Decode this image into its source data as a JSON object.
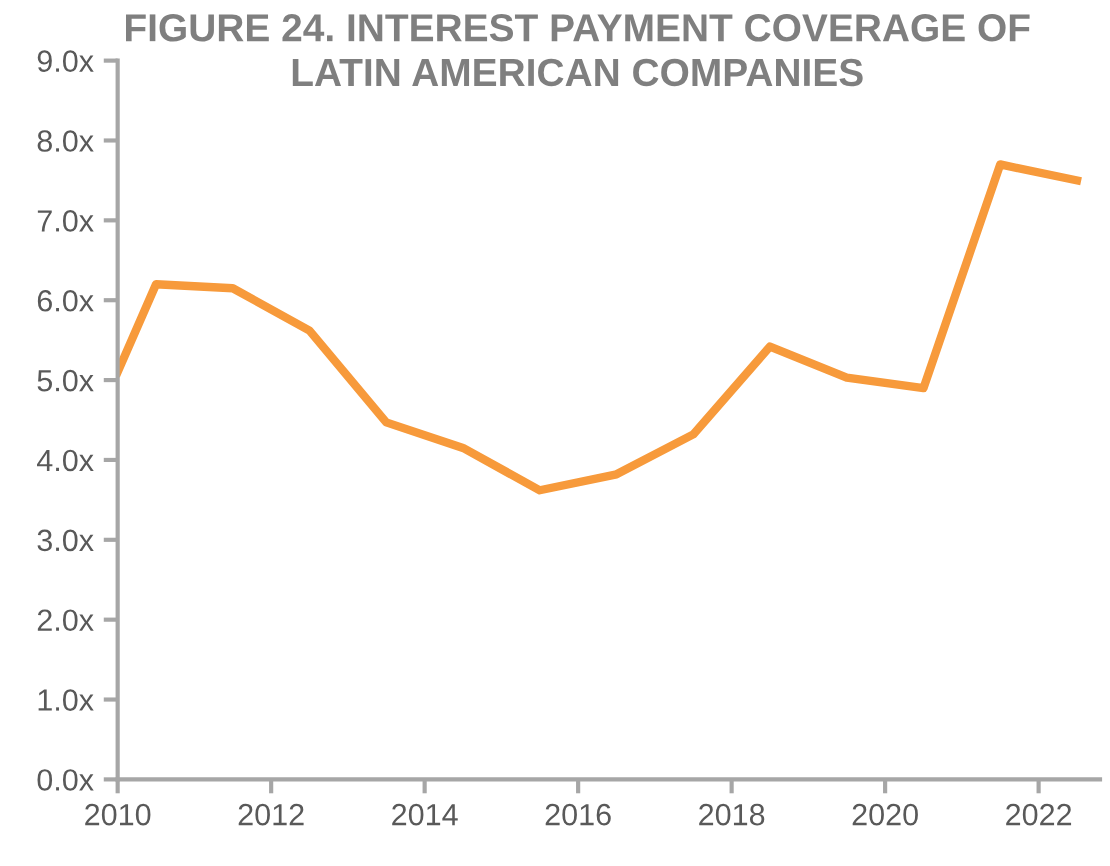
{
  "chart_data": {
    "type": "line",
    "title": "FIGURE 24. INTEREST PAYMENT COVERAGE OF\nLATIN AMERICAN COMPANIES",
    "x": [
      2010,
      2010.5,
      2011.5,
      2012.5,
      2013.5,
      2014.5,
      2015.5,
      2016.5,
      2017.5,
      2018.5,
      2019.5,
      2020.5,
      2021.5,
      2022.5
    ],
    "series": [
      {
        "color": "#f79a3b",
        "values": [
          5.1,
          6.2,
          6.15,
          5.62,
          4.47,
          4.15,
          3.62,
          3.82,
          4.32,
          5.42,
          5.03,
          4.9,
          7.7,
          7.5
        ]
      }
    ],
    "xlim": [
      2010,
      2022.8
    ],
    "xticks": [
      2010,
      2012,
      2014,
      2016,
      2018,
      2020,
      2022
    ],
    "ylim": [
      0,
      9
    ],
    "yticks": [
      {
        "value": 0,
        "label": "0.0x"
      },
      {
        "value": 1,
        "label": "1.0x"
      },
      {
        "value": 2,
        "label": "2.0x"
      },
      {
        "value": 3,
        "label": "3.0x"
      },
      {
        "value": 4,
        "label": "4.0x"
      },
      {
        "value": 5,
        "label": "5.0x"
      },
      {
        "value": 6,
        "label": "6.0x"
      },
      {
        "value": 7,
        "label": "7.0x"
      },
      {
        "value": 8,
        "label": "8.0x"
      },
      {
        "value": 9,
        "label": "9.0x"
      }
    ],
    "grid": false,
    "legend": false,
    "marker": "none",
    "line_style": "solid"
  }
}
